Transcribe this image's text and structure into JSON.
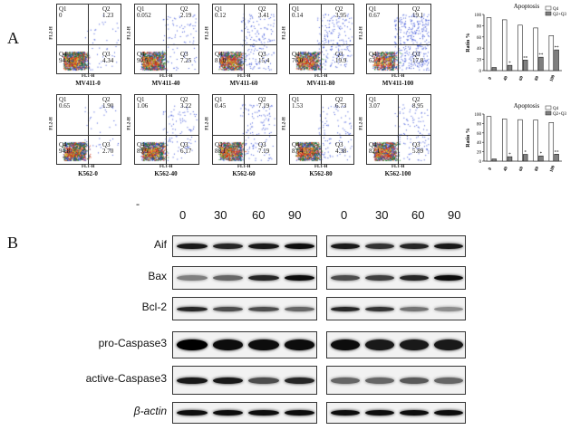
{
  "panel_a": {
    "letter": "A",
    "quadrant_labels": [
      "Q1",
      "Q2",
      "Q3",
      "Q4"
    ],
    "axis_x": "FL1-H",
    "axis_y": "FL2-H",
    "rows": [
      {
        "plots": [
          {
            "caption": "MV411-0",
            "q1": "0",
            "q2": "1.23",
            "q3": "4.34",
            "q4": "94.4"
          },
          {
            "caption": "MV411-40",
            "q1": "0.052",
            "q2": "2.19",
            "q3": "7.25",
            "q4": "90.5"
          },
          {
            "caption": "MV411-60",
            "q1": "0.12",
            "q2": "3.41",
            "q3": "15.4",
            "q4": "81.0"
          },
          {
            "caption": "MV411-80",
            "q1": "0.14",
            "q2": "3.95",
            "q3": "19.9",
            "q4": "76.0"
          },
          {
            "caption": "MV411-100",
            "q1": "0.67",
            "q2": "19.1",
            "q3": "17.8",
            "q4": "62.4"
          }
        ]
      },
      {
        "plots": [
          {
            "caption": "K562-0",
            "q1": "0.65",
            "q2": "1.90",
            "q3": "2.70",
            "q4": "94.8"
          },
          {
            "caption": "K562-40",
            "q1": "1.06",
            "q2": "3.22",
            "q3": "6.17",
            "q4": "89.5"
          },
          {
            "caption": "K562-60",
            "q1": "0.45",
            "q2": "7.19",
            "q3": "7.19",
            "q4": "88.1"
          },
          {
            "caption": "K562-80",
            "q1": "1.53",
            "q2": "6.73",
            "q3": "4.38",
            "q4": "87.4"
          },
          {
            "caption": "K562-100",
            "q1": "3.07",
            "q2": "8.95",
            "q3": "5.89",
            "q4": "82.1"
          }
        ]
      }
    ]
  },
  "chart_data": [
    {
      "type": "bar",
      "title": "Apoptosis",
      "ylabel": "Ratio %",
      "categories": [
        "0",
        "40",
        "60",
        "80",
        "100"
      ],
      "ylim": [
        0,
        100
      ],
      "legend": "top-right",
      "series": [
        {
          "name": "Q4",
          "values": [
            94.4,
            90.5,
            81.0,
            76.0,
            62.4
          ],
          "color": "#ffffff"
        },
        {
          "name": "Q2+Q3",
          "values": [
            5.6,
            9.4,
            18.8,
            23.9,
            36.9
          ],
          "color": "#7f7f7f"
        }
      ],
      "significance": [
        "",
        "*",
        "**",
        "**",
        "**"
      ]
    },
    {
      "type": "bar",
      "title": "Apoptosis",
      "ylabel": "Ratio %",
      "categories": [
        "0",
        "40",
        "60",
        "80",
        "100"
      ],
      "ylim": [
        0,
        100
      ],
      "legend": "top-right",
      "series": [
        {
          "name": "Q4",
          "values": [
            94.8,
            89.5,
            88.1,
            87.4,
            82.1
          ],
          "color": "#ffffff"
        },
        {
          "name": "Q2+Q3",
          "values": [
            4.6,
            9.4,
            14.4,
            11.1,
            14.8
          ],
          "color": "#7f7f7f"
        }
      ],
      "significance": [
        "",
        "*",
        "*",
        "*",
        "**"
      ]
    }
  ],
  "panel_b": {
    "letter": "B",
    "dash": "-",
    "lanes_left": [
      "0",
      "30",
      "60",
      "90"
    ],
    "lanes_right": [
      "0",
      "30",
      "60",
      "90"
    ],
    "proteins": [
      "Aif",
      "Bax",
      "Bcl-2",
      "pro-Caspase3",
      "active-Caspase3",
      "β-actin"
    ]
  }
}
